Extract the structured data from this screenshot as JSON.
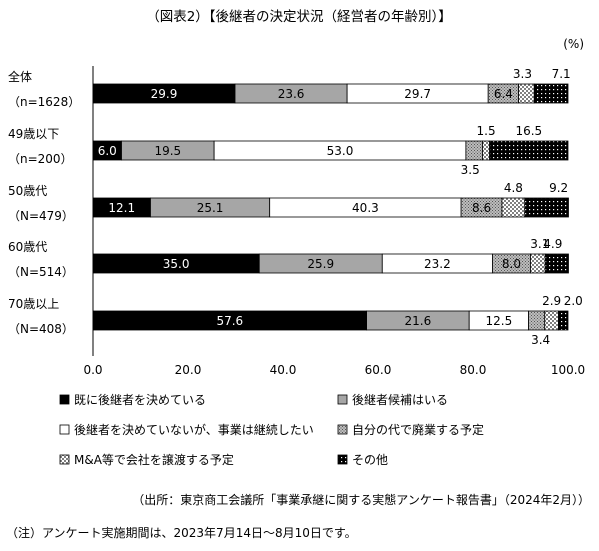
{
  "chart_data": {
    "type": "bar",
    "orientation": "horizontal",
    "stacked": true,
    "title": "（図表2）【後継者の決定状況（経営者の年齢別）】",
    "unit_label": "(%)",
    "xlim": [
      0,
      100
    ],
    "x_ticks": [
      "0.0",
      "20.0",
      "40.0",
      "60.0",
      "80.0",
      "100.0"
    ],
    "grid": false,
    "legend_position": "bottom",
    "categories": [
      {
        "label": "全体",
        "sub": "（n=1628）"
      },
      {
        "label": "49歳以下",
        "sub": "（n=200）"
      },
      {
        "label": "50歳代",
        "sub": "（N=479）"
      },
      {
        "label": "60歳代",
        "sub": "（N=514）"
      },
      {
        "label": "70歳以上",
        "sub": "（N=408）"
      }
    ],
    "series": [
      {
        "name": "既に後継者を決めている",
        "values": [
          29.9,
          6.0,
          12.1,
          35.0,
          57.6
        ],
        "fill": "#000000",
        "text_color": "#ffffff",
        "pattern": "solid"
      },
      {
        "name": "後継者候補はいる",
        "values": [
          23.6,
          19.5,
          25.1,
          25.9,
          21.6
        ],
        "fill": "#a6a6a6",
        "text_color": "#000000",
        "pattern": "solid"
      },
      {
        "name": "後継者を決めていないが、事業は継続したい",
        "values": [
          29.7,
          53.0,
          40.3,
          23.2,
          12.5
        ],
        "fill": "#ffffff",
        "text_color": "#000000",
        "pattern": "solid"
      },
      {
        "name": "自分の代で廃業する予定",
        "values": [
          6.4,
          3.5,
          8.6,
          8.0,
          3.4
        ],
        "fill": "#9a9a9a",
        "text_color": "#000000",
        "pattern": "fine-dots"
      },
      {
        "name": "M&A等で会社を譲渡する予定",
        "values": [
          3.3,
          1.5,
          4.8,
          3.1,
          2.9
        ],
        "fill": "#ffffff",
        "text_color": "#000000",
        "pattern": "checker"
      },
      {
        "name": "その他",
        "values": [
          7.1,
          16.5,
          9.2,
          4.9,
          2.0
        ],
        "fill": "#000000",
        "text_color": "#000000",
        "pattern": "dark-dots"
      }
    ]
  },
  "source": "（出所：東京商工会議所「事業承継に関する実態アンケート報告書」（2024年2月））",
  "note": "（注）アンケート実施期間は、2023年7月14日～8月10日です。"
}
